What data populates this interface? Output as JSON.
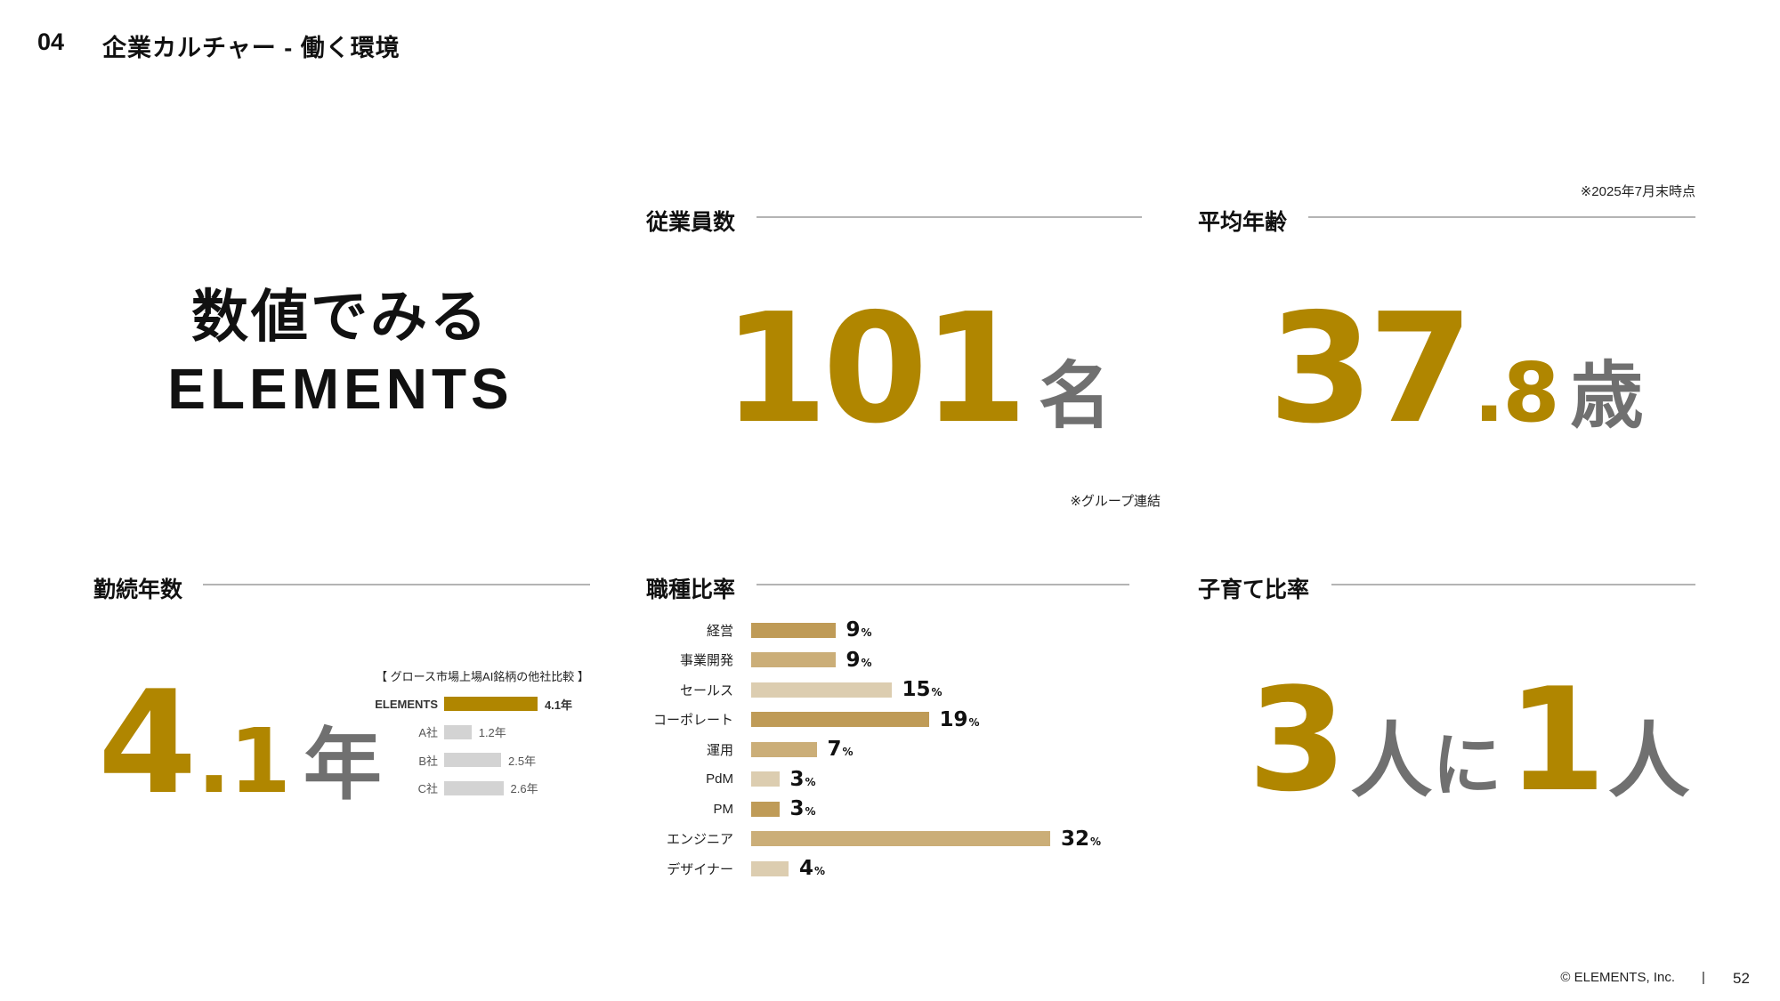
{
  "header": {
    "section_number": "04",
    "title": "企業カルチャー - 働く環境"
  },
  "hero": {
    "line1": "数値でみる",
    "line2": "ELEMENTS"
  },
  "colors": {
    "gold": "#B08600",
    "unit_gray": "#707070",
    "bar_dark": "#BF9B57",
    "bar_medium": "#CBAE78",
    "bar_light": "#DCCDB0",
    "competitor_gray": "#D3D3D3",
    "rule": "#B4B4B4"
  },
  "employees": {
    "label": "従業員数",
    "value": "101",
    "unit": "名",
    "note": "※グループ連結"
  },
  "average_age": {
    "label": "平均年齢",
    "value_int": "37",
    "value_dec": ".8",
    "unit": "歳",
    "note": "※2025年7月末時点"
  },
  "tenure": {
    "label": "勤続年数",
    "value_int": "4",
    "value_dec": ".1",
    "unit": "年",
    "comparison": {
      "title": "【 グロース市場上場AI銘柄の他社比較 】",
      "rows": [
        {
          "name": "ELEMENTS",
          "value": 4.1,
          "display": "4.1年",
          "highlight": true
        },
        {
          "name": "A社",
          "value": 1.2,
          "display": "1.2年",
          "highlight": false
        },
        {
          "name": "B社",
          "value": 2.5,
          "display": "2.5年",
          "highlight": false
        },
        {
          "name": "C社",
          "value": 2.6,
          "display": "2.6年",
          "highlight": false
        }
      ]
    }
  },
  "job_ratio": {
    "label": "職種比率",
    "unit": "%",
    "rows": [
      {
        "name": "経営",
        "value": 9,
        "display": "9",
        "tone": "dark"
      },
      {
        "name": "事業開発",
        "value": 9,
        "display": "9",
        "tone": "medium"
      },
      {
        "name": "セールス",
        "value": 15,
        "display": "15",
        "tone": "light"
      },
      {
        "name": "コーポレート",
        "value": 19,
        "display": "19",
        "tone": "dark"
      },
      {
        "name": "運用",
        "value": 7,
        "display": "7",
        "tone": "medium"
      },
      {
        "name": "PdM",
        "value": 3,
        "display": "3",
        "tone": "light"
      },
      {
        "name": "PM",
        "value": 3,
        "display": "3",
        "tone": "dark"
      },
      {
        "name": "エンジニア",
        "value": 32,
        "display": "32",
        "tone": "medium"
      },
      {
        "name": "デザイナー",
        "value": 4,
        "display": "4",
        "tone": "light"
      }
    ]
  },
  "parenting": {
    "label": "子育て比率",
    "num1": "3",
    "unit1": "人",
    "mid": "に",
    "num2": "1",
    "unit2": "人"
  },
  "footer": {
    "copyright": "© ELEMENTS, Inc.",
    "separator": "|",
    "page_number": "52"
  }
}
